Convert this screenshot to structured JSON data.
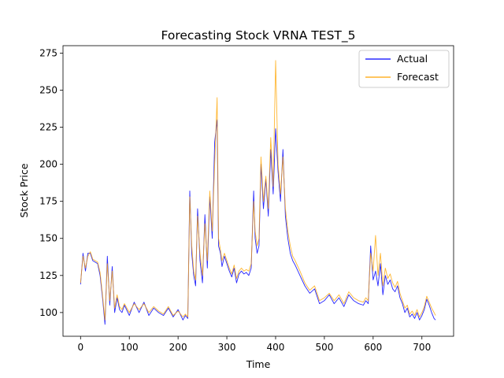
{
  "chart_data": {
    "type": "line",
    "title": "Forecasting Stock VRNA TEST_5",
    "xlabel": "Time",
    "ylabel": "Stock Price",
    "xlim": [
      -36,
      765
    ],
    "ylim": [
      84,
      280
    ],
    "xticks": [
      0,
      100,
      200,
      300,
      400,
      500,
      600,
      700
    ],
    "yticks": [
      100,
      125,
      150,
      175,
      200,
      225,
      250,
      275
    ],
    "grid": false,
    "legend_position": "top-right",
    "series": [
      {
        "name": "Actual",
        "color": "#0000ff",
        "x": [
          0,
          5,
          10,
          15,
          20,
          25,
          30,
          35,
          40,
          45,
          50,
          55,
          60,
          65,
          70,
          75,
          80,
          85,
          90,
          100,
          110,
          120,
          130,
          140,
          150,
          160,
          170,
          180,
          190,
          200,
          210,
          215,
          220,
          224,
          228,
          232,
          236,
          240,
          245,
          250,
          255,
          260,
          265,
          270,
          275,
          280,
          283,
          287,
          290,
          295,
          300,
          305,
          310,
          315,
          320,
          325,
          330,
          335,
          340,
          345,
          350,
          355,
          358,
          362,
          366,
          370,
          375,
          380,
          385,
          390,
          395,
          400,
          405,
          410,
          415,
          420,
          425,
          430,
          435,
          440,
          450,
          460,
          470,
          480,
          490,
          500,
          510,
          520,
          530,
          540,
          550,
          560,
          570,
          580,
          585,
          590,
          595,
          600,
          605,
          610,
          615,
          620,
          625,
          630,
          635,
          640,
          645,
          650,
          655,
          660,
          665,
          670,
          675,
          680,
          685,
          690,
          695,
          700,
          705,
          710,
          715,
          720,
          725,
          728
        ],
        "values": [
          119,
          140,
          128,
          140,
          140,
          135,
          134,
          133,
          125,
          110,
          92,
          138,
          105,
          131,
          100,
          110,
          102,
          100,
          105,
          98,
          107,
          100,
          107,
          98,
          103,
          100,
          98,
          103,
          97,
          102,
          95,
          98,
          96,
          182,
          140,
          125,
          118,
          170,
          135,
          120,
          166,
          130,
          178,
          150,
          215,
          230,
          145,
          140,
          131,
          138,
          133,
          128,
          124,
          130,
          120,
          126,
          128,
          126,
          127,
          125,
          130,
          182,
          150,
          140,
          145,
          200,
          170,
          190,
          165,
          210,
          180,
          224,
          195,
          175,
          210,
          165,
          150,
          140,
          135,
          132,
          125,
          118,
          113,
          116,
          106,
          108,
          112,
          106,
          110,
          104,
          112,
          108,
          106,
          105,
          108,
          106,
          145,
          122,
          128,
          118,
          133,
          112,
          125,
          119,
          122,
          116,
          114,
          118,
          110,
          106,
          100,
          103,
          97,
          99,
          96,
          100,
          95,
          98,
          102,
          109,
          105,
          100,
          96,
          95
        ]
      },
      {
        "name": "Forecast",
        "color": "#ffa500",
        "x": [
          0,
          5,
          10,
          15,
          20,
          25,
          30,
          35,
          40,
          45,
          50,
          55,
          60,
          65,
          70,
          75,
          80,
          85,
          90,
          100,
          110,
          120,
          130,
          140,
          150,
          160,
          170,
          180,
          190,
          200,
          210,
          215,
          220,
          224,
          228,
          232,
          236,
          240,
          245,
          250,
          255,
          260,
          265,
          270,
          275,
          280,
          283,
          287,
          290,
          295,
          300,
          305,
          310,
          315,
          320,
          325,
          330,
          335,
          340,
          345,
          350,
          355,
          358,
          362,
          366,
          370,
          375,
          380,
          385,
          390,
          395,
          400,
          405,
          410,
          415,
          420,
          425,
          430,
          435,
          440,
          450,
          460,
          470,
          480,
          490,
          500,
          510,
          520,
          530,
          540,
          550,
          560,
          570,
          580,
          585,
          590,
          595,
          600,
          605,
          610,
          615,
          620,
          625,
          630,
          635,
          640,
          645,
          650,
          655,
          660,
          665,
          670,
          675,
          680,
          685,
          690,
          695,
          700,
          705,
          710,
          715,
          720,
          725,
          728
        ],
        "values": [
          120,
          138,
          130,
          138,
          141,
          136,
          135,
          134,
          127,
          112,
          95,
          133,
          108,
          128,
          103,
          112,
          104,
          102,
          106,
          100,
          106,
          102,
          106,
          100,
          104,
          101,
          99,
          104,
          98,
          101,
          97,
          99,
          97,
          178,
          145,
          128,
          122,
          165,
          140,
          125,
          160,
          135,
          182,
          155,
          200,
          245,
          150,
          142,
          135,
          140,
          135,
          130,
          126,
          132,
          123,
          128,
          130,
          128,
          129,
          128,
          133,
          175,
          155,
          145,
          150,
          205,
          175,
          192,
          170,
          218,
          185,
          270,
          200,
          180,
          205,
          170,
          155,
          145,
          138,
          135,
          128,
          120,
          115,
          118,
          108,
          110,
          113,
          108,
          112,
          106,
          114,
          110,
          108,
          107,
          110,
          108,
          140,
          128,
          152,
          125,
          140,
          118,
          130,
          123,
          126,
          120,
          117,
          121,
          113,
          108,
          103,
          105,
          99,
          101,
          98,
          102,
          97,
          100,
          104,
          111,
          107,
          103,
          100,
          98
        ]
      }
    ]
  }
}
